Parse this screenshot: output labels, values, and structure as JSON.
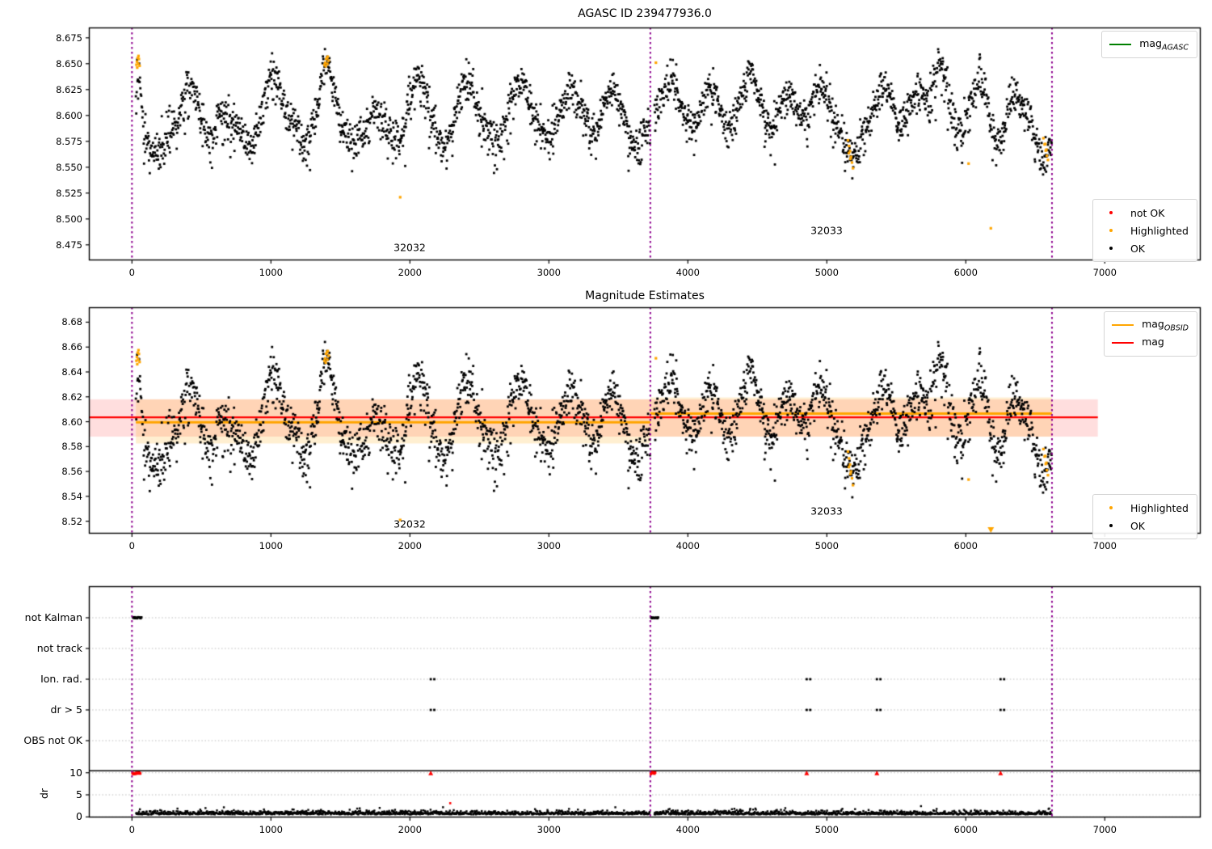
{
  "colors": {
    "ok": "#000000",
    "highlighted": "#ffa500",
    "not_ok": "#ff0000",
    "mag_agasc_line": "#007f00",
    "mag_line": "#ff0000",
    "mag_obsid_line": "#ffa500",
    "obsid_vline": "#8e008e",
    "grid": "#bbbbbb",
    "band_red": "rgba(255,0,0,0.13)",
    "band_orange": "rgba(255,165,0,0.18)"
  },
  "titles": {
    "top": "AGASC ID 239477936.0",
    "mid": "Magnitude Estimates"
  },
  "legends": {
    "top_line": {
      "main": "mag",
      "sub": "AGASC",
      "color": "#007f00"
    },
    "top_markers": [
      {
        "label": "not OK",
        "color": "#ff0000"
      },
      {
        "label": "Highlighted",
        "color": "#ffa500"
      },
      {
        "label": "OK",
        "color": "#000000"
      }
    ],
    "mid_lines": [
      {
        "main": "mag",
        "sub": "OBSID",
        "color": "#ffa500"
      },
      {
        "main": "mag",
        "sub": "",
        "color": "#ff0000"
      }
    ],
    "mid_markers": [
      {
        "label": "Highlighted",
        "color": "#ffa500"
      },
      {
        "label": "OK",
        "color": "#000000"
      }
    ]
  },
  "chart_data": [
    {
      "id": "agasc-mags",
      "type": "scatter",
      "title": "AGASC ID 239477936.0",
      "xlim": [
        -310,
        7690
      ],
      "ylim": [
        8.46,
        8.685
      ],
      "xticks": [
        0,
        1000,
        2000,
        3000,
        4000,
        5000,
        6000,
        7000
      ],
      "xtick_labels": [
        "0",
        "1000",
        "2000",
        "3000",
        "4000",
        "5000",
        "6000",
        "7000"
      ],
      "yticks": [
        8.475,
        8.5,
        8.525,
        8.55,
        8.575,
        8.6,
        8.625,
        8.65,
        8.675
      ],
      "ytick_labels": [
        "8.475",
        "8.500",
        "8.525",
        "8.550",
        "8.575",
        "8.600",
        "8.625",
        "8.650",
        "8.675"
      ],
      "vlines": [
        0,
        3730,
        6620
      ],
      "obsid_labels": [
        {
          "text": "32032",
          "x": 2000,
          "y": 8.4727
        },
        {
          "text": "32033",
          "x": 5000,
          "y": 8.489
        }
      ],
      "legend_entries": [
        "mag_AGASC",
        "not OK",
        "Highlighted",
        "OK"
      ]
    },
    {
      "id": "magnitude-estimates",
      "type": "scatter",
      "title": "Magnitude Estimates",
      "xlim": [
        -310,
        7690
      ],
      "ylim": [
        8.51,
        8.692
      ],
      "xticks": [
        0,
        1000,
        2000,
        3000,
        4000,
        5000,
        6000,
        7000
      ],
      "xtick_labels": [
        "0",
        "1000",
        "2000",
        "3000",
        "4000",
        "5000",
        "6000",
        "7000"
      ],
      "yticks": [
        8.52,
        8.54,
        8.56,
        8.58,
        8.6,
        8.62,
        8.64,
        8.66,
        8.68
      ],
      "ytick_labels": [
        "8.52",
        "8.54",
        "8.56",
        "8.58",
        "8.60",
        "8.62",
        "8.64",
        "8.66",
        "8.68"
      ],
      "vlines": [
        0,
        3730,
        6620
      ],
      "hlines": [
        {
          "name": "mag",
          "y": 8.6035,
          "x0": -310,
          "x1": 6950,
          "color": "#ff0000",
          "lw": 2.2
        },
        {
          "name": "mag_OBSID_32032",
          "y": 8.5995,
          "x0": 28,
          "x1": 3730,
          "color": "#ffa500",
          "lw": 3
        },
        {
          "name": "mag_OBSID_32033",
          "y": 8.6065,
          "x0": 3730,
          "x1": 6620,
          "color": "#ffa500",
          "lw": 3
        }
      ],
      "bands": [
        {
          "name": "mag-err",
          "y0": 8.588,
          "y1": 8.618,
          "x0": -310,
          "x1": 6950,
          "color": "rgba(255,0,0,0.13)"
        },
        {
          "name": "obsid-32032-band",
          "y0": 8.5825,
          "y1": 8.618,
          "x0": 28,
          "x1": 3730,
          "color": "rgba(255,165,0,0.18)"
        },
        {
          "name": "obsid-32033-band",
          "y0": 8.588,
          "y1": 8.6195,
          "x0": 3730,
          "x1": 6620,
          "color": "rgba(255,165,0,0.18)"
        }
      ],
      "obsid_labels": [
        {
          "text": "32032",
          "x": 2000,
          "y": 8.5175
        },
        {
          "text": "32033",
          "x": 5000,
          "y": 8.5285
        }
      ],
      "clipped_markers": [
        {
          "x": 6180,
          "y": 8.491,
          "marker": "triangle-down",
          "color": "#ffa500"
        }
      ],
      "legend_entries": [
        "mag_OBSID",
        "mag",
        "Highlighted",
        "OK"
      ]
    },
    {
      "id": "flags-dr",
      "type": "scatter",
      "categories": [
        "not Kalman",
        "not track",
        "Ion. rad.",
        "dr > 5",
        "OBS not OK"
      ],
      "dr_ticks": [
        10,
        5,
        0
      ],
      "dr_tick_labels": [
        "10",
        "5",
        "0"
      ],
      "ylabel": "dr",
      "xticks": [
        0,
        1000,
        2000,
        3000,
        4000,
        5000,
        6000,
        7000
      ],
      "xtick_labels": [
        "0",
        "1000",
        "2000",
        "3000",
        "4000",
        "5000",
        "6000",
        "7000"
      ],
      "vlines": [
        0,
        3730,
        6620
      ],
      "separator_dr": 10.45,
      "flags_black": {
        "not_kalman_clusters": [
          [
            8,
            70
          ],
          [
            3736,
            3788
          ]
        ],
        "ion_rad_x": [
          2150,
          4855,
          5360,
          6250
        ],
        "dr_gt5_x": [
          2150,
          4855,
          5360,
          6250
        ]
      },
      "dr_red": {
        "clipped_clusters": [
          [
            4,
            62
          ],
          [
            3734,
            3764
          ]
        ],
        "clipped_triangles_x": [
          2150,
          4855,
          5360,
          6250
        ],
        "points": [
          {
            "x": 2290,
            "dr": 3.1
          }
        ]
      },
      "grid": "dotted-horizontal"
    }
  ],
  "scatter_model": {
    "seed": 20240613,
    "step": 2.6,
    "noise_sigma": 0.0092,
    "stray_prob": 0.07,
    "marker_px": 2.8,
    "segments": [
      {
        "obsid": "32032",
        "x0": 28,
        "x1": 3728,
        "base": 8.5905,
        "bumps": [
          [
            45,
            18,
            0.056
          ],
          [
            420,
            55,
            0.04
          ],
          [
            640,
            35,
            0.018
          ],
          [
            1010,
            60,
            0.047
          ],
          [
            1200,
            35,
            0.016
          ],
          [
            1400,
            48,
            0.06
          ],
          [
            1750,
            40,
            0.012
          ],
          [
            2060,
            60,
            0.042
          ],
          [
            2410,
            55,
            0.044
          ],
          [
            2790,
            65,
            0.042
          ],
          [
            3160,
            70,
            0.034
          ],
          [
            3450,
            60,
            0.034
          ],
          [
            170,
            55,
            -0.028
          ],
          [
            560,
            45,
            -0.018
          ],
          [
            860,
            45,
            -0.02
          ],
          [
            1240,
            45,
            -0.026
          ],
          [
            1600,
            50,
            -0.016
          ],
          [
            1920,
            45,
            -0.016
          ],
          [
            2240,
            45,
            -0.02
          ],
          [
            2630,
            45,
            -0.016
          ],
          [
            2990,
            50,
            -0.016
          ],
          [
            3320,
            40,
            -0.012
          ],
          [
            3620,
            45,
            -0.022
          ]
        ]
      },
      {
        "obsid": "32033",
        "x0": 3760,
        "x1": 6618,
        "base": 8.6015,
        "bumps": [
          [
            3870,
            50,
            0.034
          ],
          [
            4160,
            50,
            0.028
          ],
          [
            4450,
            60,
            0.04
          ],
          [
            4720,
            40,
            0.022
          ],
          [
            4950,
            45,
            0.028
          ],
          [
            5420,
            50,
            0.028
          ],
          [
            5650,
            45,
            0.026
          ],
          [
            5820,
            50,
            0.047
          ],
          [
            6090,
            55,
            0.034
          ],
          [
            6350,
            45,
            0.02
          ],
          [
            4040,
            40,
            -0.016
          ],
          [
            4300,
            40,
            -0.016
          ],
          [
            4590,
            45,
            -0.018
          ],
          [
            5180,
            60,
            -0.042
          ],
          [
            5530,
            40,
            -0.014
          ],
          [
            5960,
            45,
            -0.022
          ],
          [
            6230,
            50,
            -0.026
          ],
          [
            6560,
            55,
            -0.045
          ]
        ]
      }
    ],
    "highlighted_points": [
      [
        32,
        8.649
      ],
      [
        36,
        8.652
      ],
      [
        41,
        8.6555
      ],
      [
        45,
        8.65
      ],
      [
        50,
        8.6545
      ],
      [
        55,
        8.648
      ],
      [
        47,
        8.6575
      ],
      [
        38,
        8.6462
      ],
      [
        1385,
        8.649
      ],
      [
        1391,
        8.651
      ],
      [
        1397,
        8.6545
      ],
      [
        1403,
        8.6558
      ],
      [
        1409,
        8.6568
      ],
      [
        1415,
        8.653
      ],
      [
        1394,
        8.6475
      ],
      [
        1406,
        8.6498
      ],
      [
        1930,
        8.521
      ],
      [
        3770,
        8.651
      ],
      [
        5152,
        8.576
      ],
      [
        5160,
        8.5705
      ],
      [
        5167,
        8.5655
      ],
      [
        5174,
        8.56
      ],
      [
        5181,
        8.5545
      ],
      [
        5188,
        8.549
      ],
      [
        5170,
        8.558
      ],
      [
        5159,
        8.5635
      ],
      [
        6020,
        8.5535
      ],
      [
        6180,
        8.491
      ],
      [
        6558,
        8.578
      ],
      [
        6567,
        8.572
      ],
      [
        6575,
        8.566
      ],
      [
        6583,
        8.561
      ],
      [
        6591,
        8.557
      ],
      [
        6572,
        8.5725
      ],
      [
        6580,
        8.567
      ]
    ],
    "dr_model": {
      "step": 3.2,
      "base": 0.55,
      "spread": 0.4,
      "spike_prob": 0.02,
      "spike_max": 1.1,
      "segments": [
        [
          30,
          3728
        ],
        [
          3760,
          6618
        ]
      ]
    }
  }
}
